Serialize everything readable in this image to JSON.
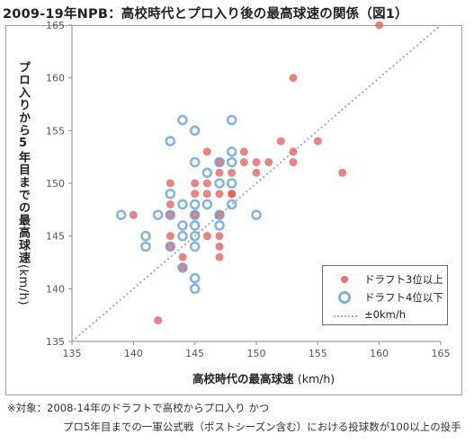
{
  "title": "2009-19年NPB：高校時代とプロ入り後の最高球速の関係（図1）",
  "notes": {
    "line1": "※対象：2008-14年のドラフトで高校からプロ入り かつ",
    "line2": "プロ5年目までの一軍公式戦（ポストシーズン含む）における投球数が100以上の投手"
  },
  "colors": {
    "red": "#e05b5b",
    "blue": "#5b9bd5",
    "diagonal": "#aaaaaa"
  },
  "chart_data": {
    "type": "scatter",
    "xlabel": "高校時代の最高球速",
    "xlabel_unit": "(km/h)",
    "ylabel": "プロ入りから5年目までの最高球速",
    "ylabel_unit": "(km/h)",
    "xlim": [
      135,
      165
    ],
    "ylim": [
      135,
      165
    ],
    "xticks": [
      135,
      140,
      145,
      150,
      155,
      160,
      165
    ],
    "yticks": [
      135,
      140,
      145,
      150,
      155,
      160,
      165
    ],
    "grid": false,
    "legend_position": "bottom-right",
    "series": [
      {
        "name": "ドラフト3位以上",
        "marker": "filled-circle",
        "points": [
          [
            142,
            137
          ],
          [
            140,
            147
          ],
          [
            143,
            150
          ],
          [
            143,
            148
          ],
          [
            143,
            147
          ],
          [
            143,
            145
          ],
          [
            143,
            144
          ],
          [
            144,
            143
          ],
          [
            144,
            142
          ],
          [
            145,
            150
          ],
          [
            145,
            149
          ],
          [
            145,
            147
          ],
          [
            146,
            153
          ],
          [
            146,
            150
          ],
          [
            146,
            145
          ],
          [
            146,
            149
          ],
          [
            147,
            152
          ],
          [
            147,
            151
          ],
          [
            147,
            149
          ],
          [
            147,
            147
          ],
          [
            147,
            145
          ],
          [
            147,
            144
          ],
          [
            147,
            143
          ],
          [
            148,
            151
          ],
          [
            148,
            149
          ],
          [
            148,
            149
          ],
          [
            149,
            153
          ],
          [
            149,
            152
          ],
          [
            150,
            151
          ],
          [
            150,
            152
          ],
          [
            151,
            152
          ],
          [
            152,
            154
          ],
          [
            153,
            153
          ],
          [
            153,
            152
          ],
          [
            153,
            160
          ],
          [
            155,
            154
          ],
          [
            157,
            151
          ],
          [
            160,
            165
          ]
        ]
      },
      {
        "name": "ドラフト4位以下",
        "marker": "open-circle",
        "points": [
          [
            139,
            147
          ],
          [
            141,
            145
          ],
          [
            141,
            144
          ],
          [
            142,
            147
          ],
          [
            143,
            154
          ],
          [
            143,
            149
          ],
          [
            143,
            147
          ],
          [
            143,
            144
          ],
          [
            144,
            156
          ],
          [
            144,
            148
          ],
          [
            144,
            146
          ],
          [
            144,
            145
          ],
          [
            144,
            142
          ],
          [
            145,
            155
          ],
          [
            145,
            152
          ],
          [
            145,
            148
          ],
          [
            145,
            147
          ],
          [
            145,
            146
          ],
          [
            145,
            145
          ],
          [
            145,
            144
          ],
          [
            145,
            141
          ],
          [
            145,
            140
          ],
          [
            146,
            151
          ],
          [
            146,
            148
          ],
          [
            147,
            150
          ],
          [
            147,
            152
          ],
          [
            147,
            147
          ],
          [
            147,
            146
          ],
          [
            148,
            156
          ],
          [
            148,
            153
          ],
          [
            148,
            152
          ],
          [
            148,
            150
          ],
          [
            148,
            148
          ],
          [
            150,
            147
          ]
        ]
      },
      {
        "name": "±0km/h",
        "type": "line",
        "style": "dotted",
        "x": [
          135,
          165
        ],
        "y": [
          135,
          165
        ]
      }
    ]
  }
}
